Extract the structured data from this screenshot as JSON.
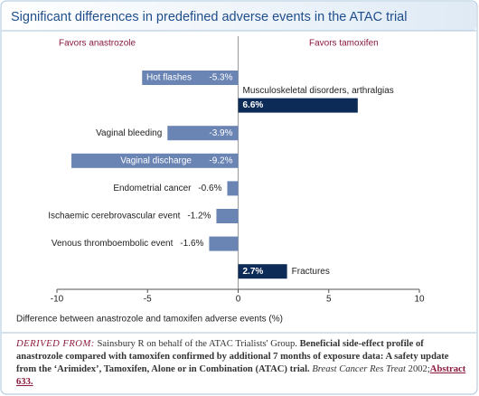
{
  "chart_data": {
    "type": "bar",
    "orientation": "horizontal",
    "title": "Significant differences in predefined adverse events in the ATAC trial",
    "left_label": "Favors anastrozole",
    "right_label": "Favors tamoxifen",
    "categories": [
      "Hot flashes",
      "Musculoskeletal disorders, arthralgias",
      "Vaginal bleeding",
      "Vaginal discharge",
      "Endometrial cancer",
      "Ischaemic cerebrovascular event",
      "Venous thromboembolic event",
      "Fractures"
    ],
    "values": [
      -5.3,
      6.6,
      -3.9,
      -9.2,
      -0.6,
      -1.2,
      -1.6,
      2.7
    ],
    "value_labels": [
      "-5.3%",
      "6.6%",
      "-3.9%",
      "-9.2%",
      "-0.6%",
      "-1.2%",
      "-1.6%",
      "2.7%"
    ],
    "colors": [
      "#6a84b4",
      "#0d2b57",
      "#6a84b4",
      "#6a84b4",
      "#6a84b4",
      "#6a84b4",
      "#6a84b4",
      "#0d2b57"
    ],
    "xlim": [
      -10,
      10
    ],
    "xticks": [
      -10,
      -5,
      0,
      5,
      10
    ],
    "xlabel": "Difference between anastrozole and tamoxifen adverse events (%)"
  },
  "source": {
    "label": "DERIVED FROM:",
    "authors": "Sainsbury R on behalf of the ATAC Trialists' Group.",
    "article": "Beneficial side-effect profile of anastrozole compared with tamoxifen confirmed by additional 7 months of exposure data: A safety update from the ‘Arimidex’, Tamoxifen, Alone or in Combination (ATAC) trial.",
    "journal": "Breast Cancer Res Treat",
    "year": "2002;",
    "link": "Abstract 633."
  }
}
